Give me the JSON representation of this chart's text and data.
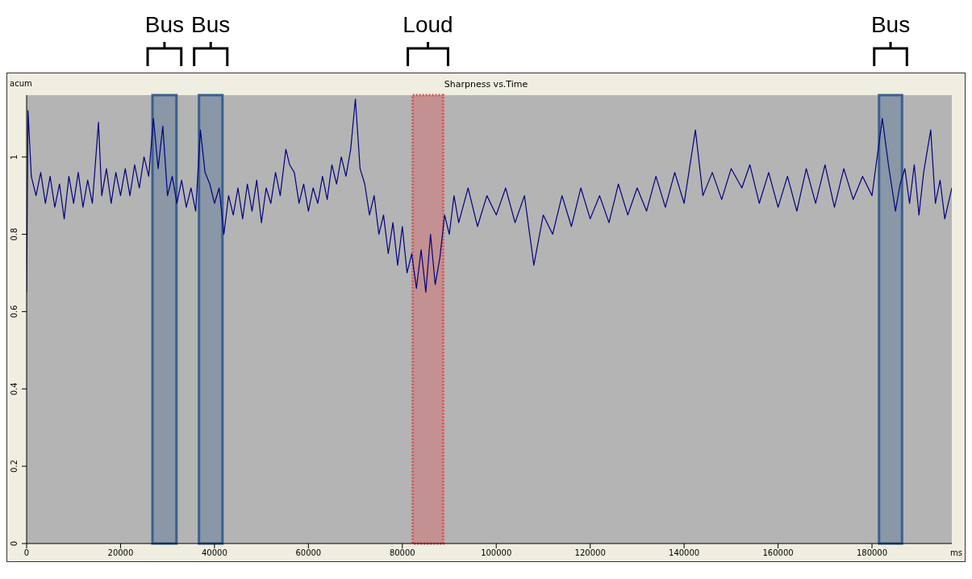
{
  "chart_data": {
    "type": "line",
    "title": "Sharpness vs.Time",
    "xlabel": "ms",
    "ylabel": "acum",
    "x": [
      0,
      300,
      1000,
      2000,
      3000,
      4000,
      5000,
      6000,
      7000,
      8000,
      9000,
      10000,
      11000,
      12000,
      13000,
      14000,
      15300,
      16000,
      17000,
      18000,
      19000,
      20000,
      21000,
      22000,
      23000,
      24000,
      25000,
      26000,
      27000,
      28000,
      29000,
      30000,
      31000,
      32000,
      33000,
      34000,
      35000,
      36000,
      37000,
      38000,
      39000,
      40000,
      41000,
      42000,
      43000,
      44000,
      45000,
      46000,
      47000,
      48000,
      49000,
      50000,
      51000,
      52000,
      53000,
      54000,
      55200,
      56000,
      57000,
      58000,
      59000,
      60000,
      61000,
      62000,
      63000,
      64000,
      65000,
      66000,
      67000,
      68000,
      69000,
      70000,
      71000,
      72000,
      73000,
      74000,
      75000,
      76000,
      77000,
      78000,
      79000,
      80000,
      81000,
      82000,
      83000,
      84000,
      85000,
      86000,
      87000,
      88000,
      89000,
      90000,
      91000,
      92000,
      94000,
      96000,
      98000,
      100000,
      102000,
      104000,
      106000,
      108000,
      110000,
      112000,
      114000,
      116000,
      118000,
      120000,
      122000,
      124000,
      126000,
      128000,
      130000,
      132000,
      134000,
      136000,
      138000,
      140000,
      142400,
      144000,
      146000,
      148000,
      150000,
      152300,
      154000,
      156000,
      158000,
      160000,
      162000,
      164000,
      166000,
      168000,
      170000,
      172000,
      174000,
      176000,
      178000,
      180000,
      182200,
      183500,
      185000,
      186000,
      187000,
      188000,
      189000,
      190000,
      191000,
      192500,
      193500,
      194500,
      195500,
      197000
    ],
    "series": [
      {
        "color": "#000080",
        "values": [
          0.65,
          1.12,
          0.95,
          0.9,
          0.96,
          0.88,
          0.95,
          0.87,
          0.93,
          0.84,
          0.95,
          0.88,
          0.96,
          0.87,
          0.94,
          0.88,
          1.09,
          0.9,
          0.97,
          0.88,
          0.96,
          0.9,
          0.97,
          0.9,
          0.98,
          0.92,
          1.0,
          0.95,
          1.1,
          0.97,
          1.08,
          0.9,
          0.95,
          0.88,
          0.94,
          0.87,
          0.92,
          0.86,
          1.07,
          0.96,
          0.93,
          0.88,
          0.92,
          0.8,
          0.9,
          0.85,
          0.92,
          0.84,
          0.93,
          0.86,
          0.94,
          0.83,
          0.92,
          0.88,
          0.96,
          0.9,
          1.02,
          0.98,
          0.96,
          0.88,
          0.93,
          0.86,
          0.92,
          0.88,
          0.95,
          0.89,
          0.98,
          0.93,
          1.0,
          0.95,
          1.02,
          1.15,
          0.97,
          0.93,
          0.85,
          0.9,
          0.8,
          0.85,
          0.75,
          0.83,
          0.72,
          0.82,
          0.7,
          0.75,
          0.66,
          0.76,
          0.65,
          0.8,
          0.67,
          0.74,
          0.85,
          0.8,
          0.9,
          0.83,
          0.92,
          0.82,
          0.9,
          0.85,
          0.92,
          0.83,
          0.9,
          0.72,
          0.85,
          0.8,
          0.9,
          0.82,
          0.92,
          0.84,
          0.9,
          0.83,
          0.93,
          0.85,
          0.92,
          0.86,
          0.95,
          0.87,
          0.96,
          0.88,
          1.07,
          0.9,
          0.96,
          0.89,
          0.97,
          0.92,
          0.98,
          0.88,
          0.96,
          0.87,
          0.95,
          0.86,
          0.97,
          0.88,
          0.98,
          0.87,
          0.97,
          0.89,
          0.95,
          0.9,
          1.1,
          0.98,
          0.86,
          0.93,
          0.97,
          0.88,
          0.98,
          0.85,
          0.96,
          1.07,
          0.88,
          0.94,
          0.84,
          0.92
        ]
      }
    ],
    "xlim": [
      0,
      197000
    ],
    "ylim": [
      0,
      1.16
    ],
    "xticks": [
      0,
      20000,
      40000,
      60000,
      80000,
      100000,
      120000,
      140000,
      160000,
      180000
    ],
    "yticks": [
      0,
      0.2,
      0.4,
      0.6,
      0.8,
      1
    ],
    "bands": [
      {
        "axis": "x",
        "from": 26800,
        "to": 31900,
        "label": "Bus",
        "color": "#3a6090"
      },
      {
        "axis": "x",
        "from": 36700,
        "to": 41700,
        "label": "Bus",
        "color": "#3a6090"
      },
      {
        "axis": "x",
        "from": 82200,
        "to": 88700,
        "label": "Loud",
        "color": "#e05050"
      },
      {
        "axis": "x",
        "from": 181500,
        "to": 186400,
        "label": "Bus",
        "color": "#3a6090"
      }
    ]
  }
}
